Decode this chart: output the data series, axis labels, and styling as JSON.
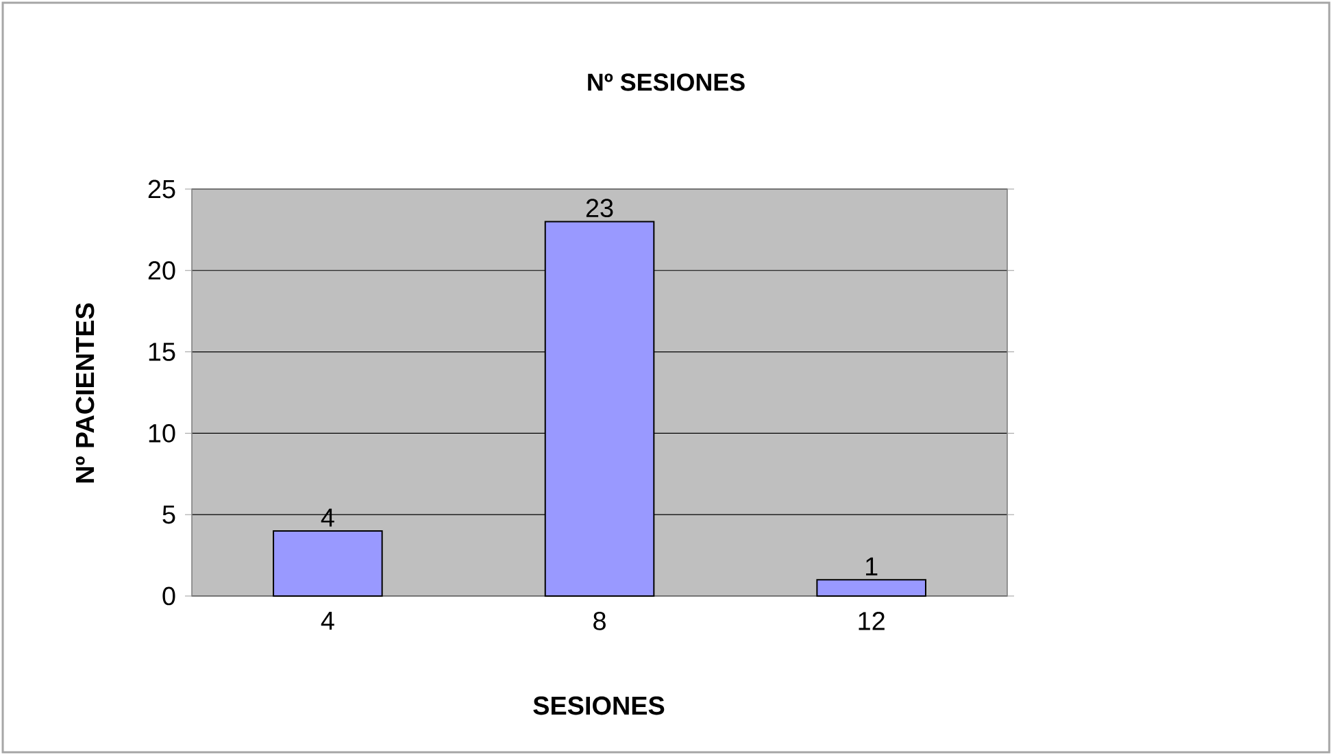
{
  "chart_data": {
    "type": "bar",
    "title": "Nº SESIONES",
    "xlabel": "SESIONES",
    "ylabel": "Nº PACIENTES",
    "categories": [
      "4",
      "8",
      "12"
    ],
    "values": [
      4,
      23,
      1
    ],
    "color": "#9999ff",
    "ylim": [
      0,
      25
    ],
    "yticks": [
      0,
      5,
      10,
      15,
      20,
      25
    ],
    "grid": "y",
    "data_labels": true
  }
}
